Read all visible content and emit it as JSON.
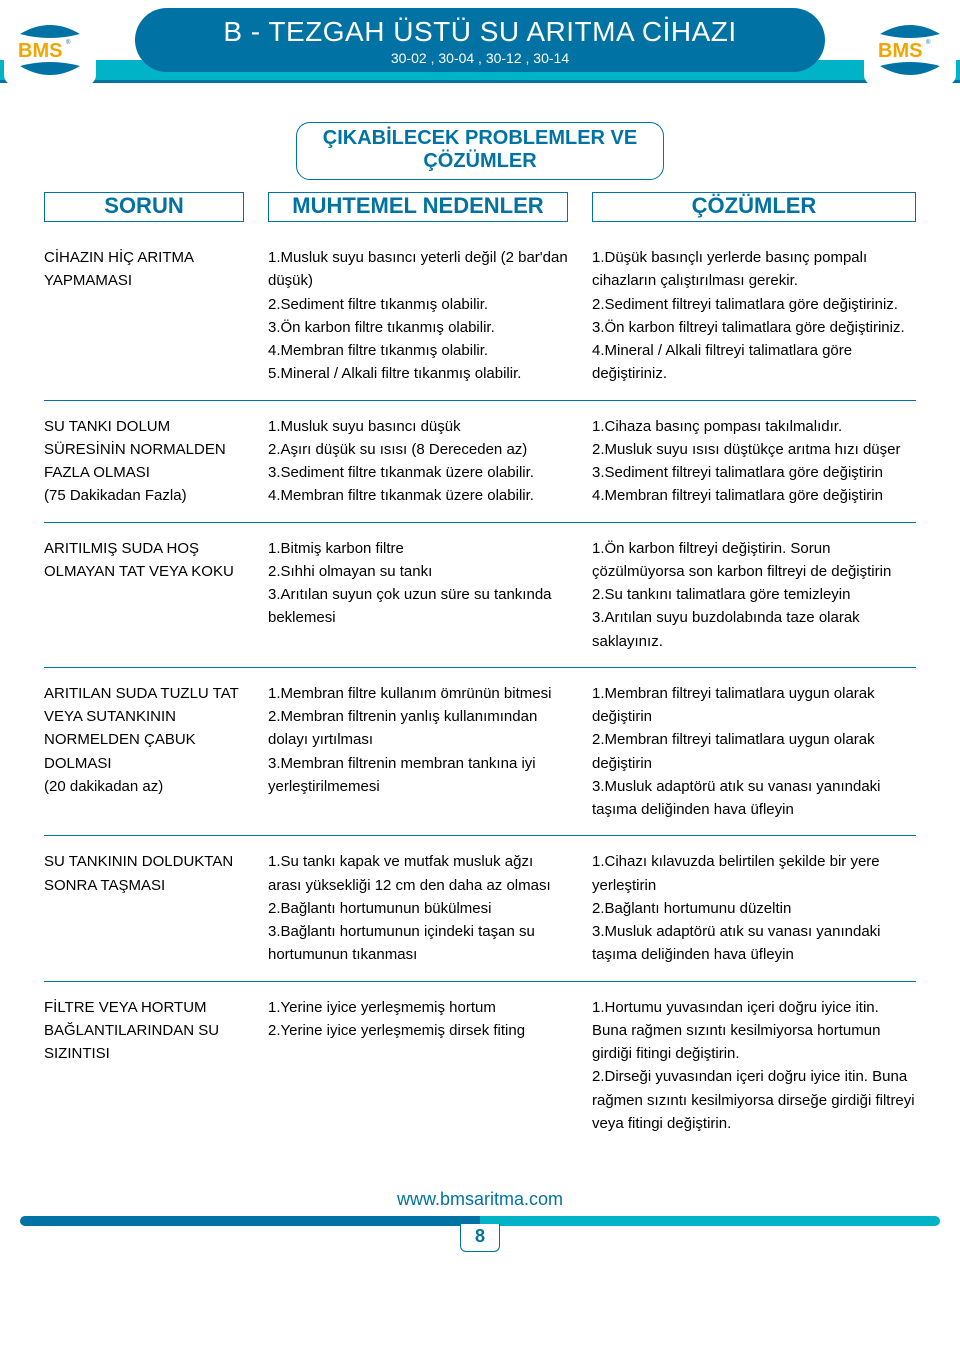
{
  "colors": {
    "brand_navy": "#0072a3",
    "brand_teal": "#00b3c6",
    "brand_yellow": "#f0a500",
    "text": "#000000",
    "bg": "#ffffff"
  },
  "header": {
    "title": "B - TEZGAH ÜSTÜ SU ARITMA CİHAZI",
    "subtitle": "30-02 , 30-04 , 30-12 , 30-14",
    "logo_text": "BMS"
  },
  "subhead": "ÇIKABİLECEK PROBLEMLER VE ÇÖZÜMLER",
  "column_heads": {
    "problem": "SORUN",
    "cause": "MUHTEMEL NEDENLER",
    "solution": "ÇÖZÜMLER"
  },
  "rows": [
    {
      "problem": "CİHAZIN HİÇ ARITMA YAPMAMASI",
      "cause": "1.Musluk suyu basıncı yeterli değil (2 bar'dan düşük)\n2.Sediment filtre tıkanmış olabilir.\n3.Ön karbon filtre tıkanmış olabilir.\n4.Membran filtre tıkanmış olabilir.\n5.Mineral / Alkali  filtre tıkanmış olabilir.",
      "solution": "1.Düşük basınçlı yerlerde basınç pompalı cihazların çalıştırılması gerekir.\n2.Sediment filtreyi talimatlara göre değiştiriniz.\n3.Ön karbon filtreyi talimatlara göre değiştiriniz.\n4.Mineral / Alkali  filtreyi talimatlara göre değiştiriniz."
    },
    {
      "problem": "SU TANKI DOLUM SÜRESİNİN NORMALDEN FAZLA OLMASI\n(75 Dakikadan Fazla)",
      "cause": "1.Musluk suyu basıncı düşük\n2.Aşırı düşük su ısısı (8 Dereceden az)\n3.Sediment filtre tıkanmak üzere olabilir.\n4.Membran filtre tıkanmak üzere olabilir.",
      "solution": "1.Cihaza basınç pompası takılmalıdır.\n2.Musluk suyu ısısı düştükçe arıtma hızı düşer\n3.Sediment filtreyi talimatlara göre değiştirin\n4.Membran filtreyi talimatlara göre değiştirin"
    },
    {
      "problem": "ARITILMIŞ SUDA HOŞ OLMAYAN TAT VEYA KOKU",
      "cause": "1.Bitmiş karbon filtre\n2.Sıhhi olmayan su tankı\n3.Arıtılan suyun çok uzun süre su tankında beklemesi",
      "solution": "1.Ön karbon filtreyi değiştirin. Sorun çözülmüyorsa son karbon filtreyi de değiştirin\n2.Su tankını talimatlara göre temizleyin\n3.Arıtılan suyu buzdolabında taze olarak saklayınız."
    },
    {
      "problem": "ARITILAN SUDA TUZLU TAT VEYA SUTANKININ NORMELDEN ÇABUK DOLMASI\n(20 dakikadan az)",
      "cause": "1.Membran filtre kullanım ömrünün bitmesi\n2.Membran filtrenin yanlış kullanımından dolayı yırtılması\n3.Membran filtrenin membran tankına iyi yerleştirilmemesi",
      "solution": "1.Membran filtreyi talimatlara uygun olarak değiştirin\n2.Membran filtreyi talimatlara uygun olarak değiştirin\n3.Musluk adaptörü atık su vanası yanındaki taşıma deliğinden hava üfleyin"
    },
    {
      "problem": "SU TANKININ DOLDUKTAN SONRA TAŞMASI",
      "cause": "1.Su tankı kapak ve mutfak musluk ağzı arası yüksekliği 12 cm den daha az olması\n2.Bağlantı hortumunun bükülmesi\n3.Bağlantı hortumunun içindeki taşan su hortumunun tıkanması",
      "solution": "1.Cihazı kılavuzda belirtilen şekilde bir yere yerleştirin\n2.Bağlantı hortumunu düzeltin\n3.Musluk adaptörü atık su vanası yanındaki taşıma deliğinden hava üfleyin"
    },
    {
      "problem": "FİLTRE VEYA HORTUM BAĞLANTILARINDAN SU SIZINTISI",
      "cause": "1.Yerine iyice yerleşmemiş hortum\n2.Yerine iyice yerleşmemiş dirsek fiting",
      "solution": "1.Hortumu yuvasından içeri doğru iyice itin. Buna rağmen sızıntı kesilmiyorsa hortumun girdiği fitingi değiştirin.\n2.Dirseği yuvasından içeri doğru iyice itin. Buna rağmen sızıntı kesilmiyorsa dirseğe girdiği filtreyi veya fitingi  değiştirin."
    }
  ],
  "footer": {
    "url": "www.bmsaritma.com",
    "page_number": "8"
  }
}
